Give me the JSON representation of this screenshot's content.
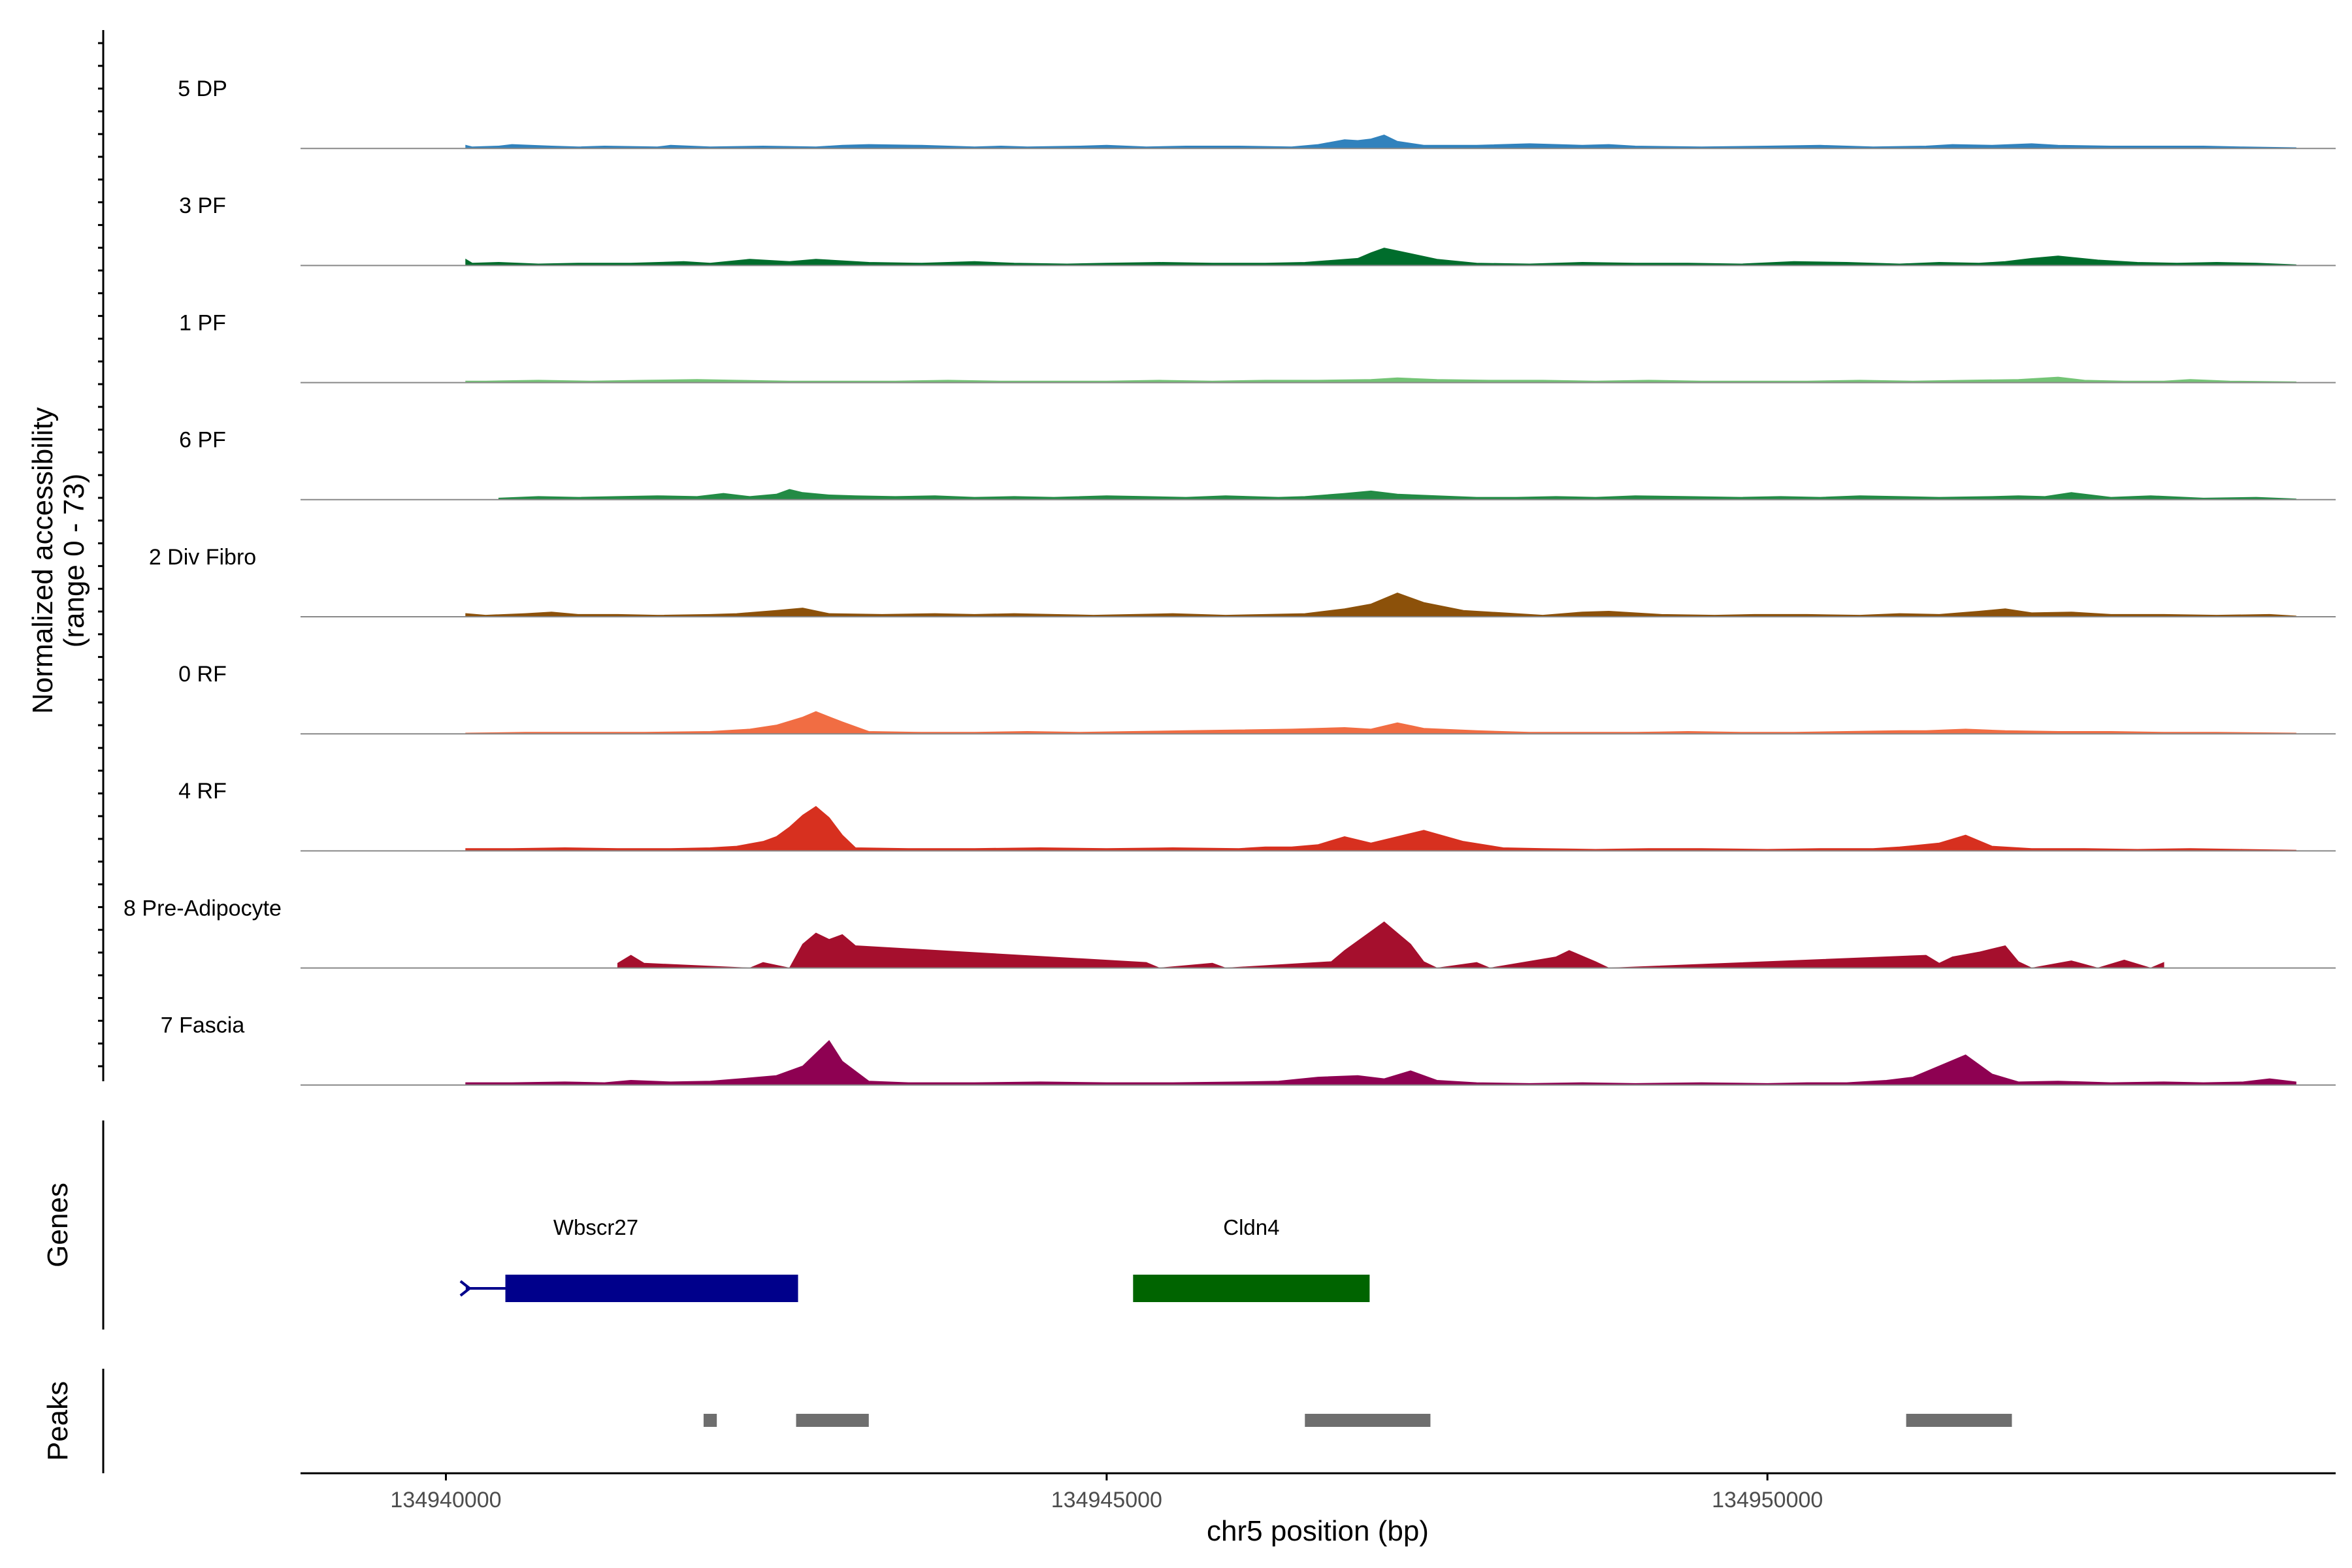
{
  "chart_data": {
    "type": "area",
    "title": "",
    "chromosome": "chr5",
    "xlabel": "chr5 position (bp)",
    "ylabel": "Normalized accessibility",
    "ylabel_range": "(range 0 - 73)",
    "xlim": [
      134938900,
      134954300
    ],
    "region": [
      134940150,
      134954000
    ],
    "xticks": [
      134940000,
      134945000,
      134950000
    ],
    "xtick_labels": [
      "134940000",
      "134945000",
      "134950000"
    ],
    "ylim": [
      0,
      73
    ],
    "tracks": [
      {
        "name": "5 DP",
        "color": "#3182bd",
        "x": [
          134940150,
          134940200,
          134940400,
          134940500,
          134940800,
          134941000,
          134941200,
          134941600,
          134941700,
          134942000,
          134942400,
          134942800,
          134943000,
          134943200,
          134943600,
          134944000,
          134944200,
          134944400,
          134944800,
          134945000,
          134945300,
          134945600,
          134946000,
          134946400,
          134946600,
          134946800,
          134946900,
          134947000,
          134947100,
          134947200,
          134947400,
          134947800,
          134948200,
          134948600,
          134948800,
          134949000,
          134949500,
          134950000,
          134950400,
          134950800,
          134951200,
          134951400,
          134951700,
          134952000,
          134952200,
          134952600,
          134953000,
          134953300,
          134953600,
          134954000
        ],
        "y": [
          4,
          2,
          3,
          5,
          3,
          2,
          3,
          2,
          4,
          2,
          3,
          2,
          4,
          5,
          4,
          2,
          3,
          2,
          3,
          4,
          2,
          3,
          3,
          2,
          5,
          11,
          10,
          12,
          17,
          9,
          4,
          4,
          6,
          4,
          5,
          3,
          2,
          3,
          4,
          2,
          3,
          5,
          4,
          6,
          4,
          3,
          3,
          3,
          2,
          1
        ]
      },
      {
        "name": "3 PF",
        "color": "#006d2c",
        "x": [
          134940150,
          134940200,
          134940400,
          134940700,
          134941000,
          134941400,
          134941800,
          134942000,
          134942300,
          134942600,
          134942800,
          134943200,
          134943600,
          134944000,
          134944300,
          134944700,
          134945000,
          134945400,
          134945800,
          134946200,
          134946500,
          134946900,
          134947000,
          134947100,
          134947300,
          134947500,
          134947800,
          134948200,
          134948600,
          134949000,
          134949400,
          134949800,
          134950200,
          134950600,
          134950800,
          134951000,
          134951300,
          134951600,
          134951800,
          134952000,
          134952200,
          134952500,
          134952800,
          134953100,
          134953400,
          134953700,
          134954000
        ],
        "y": [
          8,
          3,
          4,
          2,
          3,
          3,
          5,
          3,
          8,
          5,
          8,
          4,
          3,
          5,
          3,
          2,
          3,
          4,
          3,
          3,
          4,
          9,
          16,
          22,
          15,
          8,
          3,
          2,
          4,
          3,
          3,
          2,
          5,
          4,
          3,
          2,
          4,
          3,
          5,
          9,
          12,
          7,
          4,
          3,
          4,
          3,
          1
        ]
      },
      {
        "name": "1 PF",
        "color": "#74c476",
        "x": [
          134940150,
          134940300,
          134940700,
          134941100,
          134941500,
          134941900,
          134942200,
          134942600,
          134943000,
          134943400,
          134943800,
          134944200,
          134944600,
          134945000,
          134945400,
          134945800,
          134946200,
          134946600,
          134947000,
          134947200,
          134947500,
          134947900,
          134948300,
          134948700,
          134949100,
          134949500,
          134949900,
          134950300,
          134950700,
          134951100,
          134951500,
          134951900,
          134952200,
          134952400,
          134952700,
          134953000,
          134953200,
          134953500,
          134954000
        ],
        "y": [
          2,
          2,
          3,
          2,
          3,
          4,
          3,
          2,
          2,
          2,
          3,
          2,
          2,
          2,
          3,
          2,
          3,
          3,
          4,
          6,
          4,
          3,
          3,
          2,
          3,
          2,
          2,
          2,
          3,
          2,
          3,
          4,
          7,
          3,
          2,
          2,
          4,
          2,
          1
        ]
      },
      {
        "name": "6 PF",
        "color": "#238b45",
        "x": [
          134940400,
          134940700,
          134941000,
          134941300,
          134941600,
          134941900,
          134942100,
          134942300,
          134942500,
          134942600,
          134942700,
          134942900,
          134943100,
          134943400,
          134943700,
          134944000,
          134944300,
          134944600,
          134945000,
          134945300,
          134945600,
          134945900,
          134946300,
          134946500,
          134946800,
          134947000,
          134947200,
          134947500,
          134947800,
          134948100,
          134948400,
          134948700,
          134949000,
          134949400,
          134949800,
          134950100,
          134950400,
          134950700,
          134951000,
          134951300,
          134951700,
          134951900,
          134952100,
          134952300,
          134952600,
          134952900,
          134953300,
          134953700,
          134954000
        ],
        "y": [
          2,
          4,
          3,
          4,
          5,
          4,
          8,
          4,
          7,
          13,
          9,
          6,
          5,
          4,
          5,
          3,
          4,
          3,
          5,
          4,
          3,
          5,
          3,
          4,
          8,
          11,
          7,
          5,
          3,
          3,
          4,
          3,
          5,
          4,
          3,
          4,
          3,
          5,
          4,
          3,
          4,
          5,
          4,
          9,
          3,
          5,
          2,
          3,
          1
        ]
      },
      {
        "name": "2 Div Fibro",
        "color": "#8c510a",
        "x": [
          134940150,
          134940300,
          134940600,
          134940800,
          134941000,
          134941300,
          134941600,
          134942000,
          134942200,
          134942500,
          134942700,
          134942900,
          134943300,
          134943700,
          134944000,
          134944300,
          134944600,
          134944900,
          134945200,
          134945500,
          134945900,
          134946200,
          134946500,
          134946800,
          134947000,
          134947200,
          134947400,
          134947700,
          134948000,
          134948300,
          134948600,
          134948800,
          134949200,
          134949600,
          134949900,
          134950300,
          134950700,
          134951000,
          134951300,
          134951600,
          134951800,
          134952000,
          134952300,
          134952600,
          134953000,
          134953400,
          134953800,
          134954000
        ],
        "y": [
          4,
          2,
          4,
          6,
          3,
          3,
          2,
          3,
          4,
          8,
          11,
          4,
          3,
          4,
          3,
          4,
          3,
          2,
          3,
          4,
          2,
          3,
          4,
          10,
          16,
          30,
          18,
          8,
          5,
          2,
          6,
          7,
          3,
          2,
          3,
          3,
          2,
          4,
          3,
          7,
          10,
          5,
          6,
          3,
          3,
          2,
          3,
          1
        ]
      },
      {
        "name": "0 RF",
        "color": "#f16d43",
        "x": [
          134940150,
          134940600,
          134941000,
          134941500,
          134942000,
          134942300,
          134942500,
          134942700,
          134942800,
          134943000,
          134943200,
          134943600,
          134944000,
          134944400,
          134944800,
          134945200,
          134945600,
          134946000,
          134946400,
          134946800,
          134947000,
          134947200,
          134947400,
          134947800,
          134948200,
          134948600,
          134949000,
          134949400,
          134949800,
          134950200,
          134950600,
          134951000,
          134951200,
          134951500,
          134951800,
          134952200,
          134952600,
          134953000,
          134953400,
          134954000
        ],
        "y": [
          1,
          2,
          2,
          2,
          3,
          6,
          11,
          21,
          28,
          15,
          3,
          2,
          2,
          3,
          2,
          3,
          4,
          5,
          6,
          8,
          6,
          14,
          7,
          4,
          2,
          2,
          2,
          3,
          2,
          2,
          3,
          4,
          4,
          6,
          4,
          3,
          3,
          2,
          2,
          1
        ]
      },
      {
        "name": "4 RF",
        "color": "#d7301f",
        "x": [
          134940150,
          134940500,
          134940900,
          134941300,
          134941700,
          134942000,
          134942200,
          134942400,
          134942500,
          134942600,
          134942700,
          134942800,
          134942900,
          134943000,
          134943100,
          134943500,
          134944000,
          134944500,
          134945000,
          134945500,
          134946000,
          134946200,
          134946400,
          134946600,
          134946800,
          134947000,
          134947200,
          134947400,
          134947700,
          134948000,
          134948300,
          134948700,
          134949100,
          134949500,
          134950000,
          134950400,
          134950800,
          134951000,
          134951300,
          134951500,
          134951700,
          134952000,
          134952400,
          134952800,
          134953200,
          134953600,
          134954000
        ],
        "y": [
          3,
          3,
          4,
          3,
          3,
          4,
          6,
          12,
          18,
          30,
          45,
          56,
          42,
          20,
          4,
          3,
          3,
          4,
          3,
          4,
          3,
          5,
          5,
          8,
          18,
          10,
          18,
          26,
          12,
          4,
          3,
          2,
          3,
          3,
          2,
          3,
          3,
          5,
          10,
          20,
          6,
          3,
          3,
          2,
          3,
          2,
          1
        ]
      },
      {
        "name": "8 Pre-Adipocyte",
        "color": "#a50f2d",
        "x": [
          134941300,
          134941400,
          134941500,
          134942300,
          134942400,
          134942600,
          134942700,
          134942800,
          134942900,
          134943000,
          134943100,
          134945300,
          134945400,
          134945800,
          134945900,
          134946700,
          134946800,
          134947000,
          134947100,
          134947200,
          134947300,
          134947400,
          134947500,
          134947800,
          134947900,
          134948400,
          134948500,
          134948700,
          134948800,
          134951200,
          134951300,
          134951400,
          134951600,
          134951800,
          134951900,
          134952000,
          134952300,
          134952500,
          134952700,
          134952900,
          134953000
        ],
        "y": [
          6,
          16,
          6,
          0,
          7,
          0,
          30,
          44,
          36,
          42,
          28,
          7,
          0,
          6,
          0,
          8,
          22,
          46,
          58,
          44,
          30,
          8,
          0,
          7,
          0,
          14,
          22,
          8,
          0,
          16,
          6,
          14,
          20,
          28,
          8,
          0,
          9,
          0,
          10,
          0,
          7
        ]
      },
      {
        "name": "7 Fascia",
        "color": "#8e0152",
        "x": [
          134940150,
          134940500,
          134940900,
          134941200,
          134941400,
          134941700,
          134942000,
          134942300,
          134942500,
          134942700,
          134942800,
          134942900,
          134943000,
          134943200,
          134943500,
          134944000,
          134944500,
          134945000,
          134945500,
          134946000,
          134946300,
          134946600,
          134946900,
          134947100,
          134947300,
          134947500,
          134947800,
          134948200,
          134948600,
          134949000,
          134949500,
          134950000,
          134950300,
          134950600,
          134950900,
          134951100,
          134951300,
          134951500,
          134951700,
          134951900,
          134952200,
          134952600,
          134953000,
          134953300,
          134953600,
          134953800,
          134954000
        ],
        "y": [
          3,
          3,
          4,
          3,
          6,
          4,
          5,
          9,
          12,
          24,
          40,
          56,
          30,
          5,
          3,
          3,
          4,
          3,
          3,
          4,
          5,
          10,
          12,
          8,
          18,
          6,
          3,
          2,
          3,
          2,
          3,
          2,
          3,
          3,
          6,
          10,
          24,
          38,
          14,
          4,
          5,
          3,
          4,
          3,
          4,
          8,
          4
        ]
      }
    ],
    "genes": [
      {
        "name": "Wbscr27",
        "start": 134940150,
        "exon_start": 134940450,
        "end": 134942650,
        "strand": "-",
        "color": "#00008b"
      },
      {
        "name": "Cldn4",
        "start": 134945200,
        "end": 134946990,
        "strand": "+",
        "color": "#006400"
      }
    ],
    "peaks": [
      {
        "start": 134941950,
        "end": 134942050
      },
      {
        "start": 134942650,
        "end": 134943200
      },
      {
        "start": 134946500,
        "end": 134947450
      },
      {
        "start": 134951050,
        "end": 134951850
      }
    ],
    "genes_label": "Genes",
    "peaks_label": "Peaks"
  }
}
